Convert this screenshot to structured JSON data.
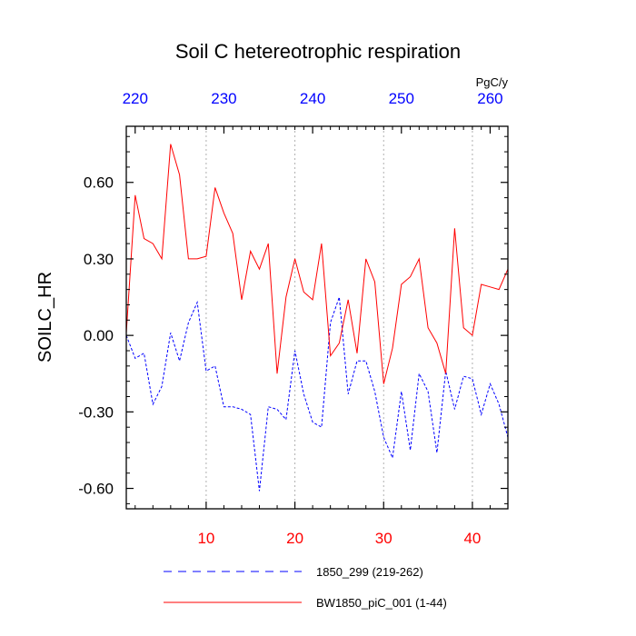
{
  "chart_data": {
    "type": "line",
    "title": "Soil C hetereotrophic respiration",
    "ylabel": "SOILC_HR",
    "units": "PgC/y",
    "xlim": [
      1,
      44
    ],
    "ylim": [
      -0.68,
      0.82
    ],
    "y_ticks": [
      -0.6,
      -0.3,
      0.0,
      0.3,
      0.6
    ],
    "y_tick_labels": [
      "-0.60",
      "-0.30",
      "0.00",
      "0.30",
      "0.60"
    ],
    "x_bottom_ticks": [
      10,
      20,
      30,
      40
    ],
    "x_bottom_tick_labels": [
      "10",
      "20",
      "30",
      "40"
    ],
    "x_bottom_color": "#ff0000",
    "x_top_tick_labels": [
      "220",
      "230",
      "240",
      "250",
      "260"
    ],
    "x_top_tick_positions": [
      2,
      12,
      22,
      32,
      42
    ],
    "x_top_color": "#0000ff",
    "grid_x": [
      10,
      20,
      30,
      40
    ],
    "x": [
      1,
      2,
      3,
      4,
      5,
      6,
      7,
      8,
      9,
      10,
      11,
      12,
      13,
      14,
      15,
      16,
      17,
      18,
      19,
      20,
      21,
      22,
      23,
      24,
      25,
      26,
      27,
      28,
      29,
      30,
      31,
      32,
      33,
      34,
      35,
      36,
      37,
      38,
      39,
      40,
      41,
      42,
      43,
      44
    ],
    "series": [
      {
        "name": "1850_299 (219-262)",
        "color": "#0000ff",
        "style": "dashed",
        "values": [
          0.0,
          -0.09,
          -0.07,
          -0.27,
          -0.2,
          0.01,
          -0.1,
          0.05,
          0.13,
          -0.14,
          -0.12,
          -0.28,
          -0.28,
          -0.29,
          -0.31,
          -0.61,
          -0.28,
          -0.29,
          -0.33,
          -0.06,
          -0.23,
          -0.34,
          -0.36,
          0.05,
          0.15,
          -0.23,
          -0.1,
          -0.1,
          -0.22,
          -0.4,
          -0.48,
          -0.22,
          -0.45,
          -0.15,
          -0.22,
          -0.46,
          -0.14,
          -0.29,
          -0.16,
          -0.17,
          -0.31,
          -0.19,
          -0.27,
          -0.4
        ]
      },
      {
        "name": "BW1850_piC_001 (1-44)",
        "color": "#ff0000",
        "style": "solid",
        "values": [
          0.01,
          0.55,
          0.38,
          0.36,
          0.3,
          0.75,
          0.63,
          0.3,
          0.3,
          0.31,
          0.58,
          0.48,
          0.4,
          0.14,
          0.33,
          0.26,
          0.36,
          -0.15,
          0.15,
          0.3,
          0.17,
          0.14,
          0.36,
          -0.08,
          -0.03,
          0.14,
          -0.07,
          0.3,
          0.21,
          -0.19,
          -0.05,
          0.2,
          0.23,
          0.3,
          0.03,
          -0.03,
          -0.15,
          0.42,
          0.03,
          0.0,
          0.2,
          0.19,
          0.18,
          0.26
        ]
      }
    ]
  }
}
